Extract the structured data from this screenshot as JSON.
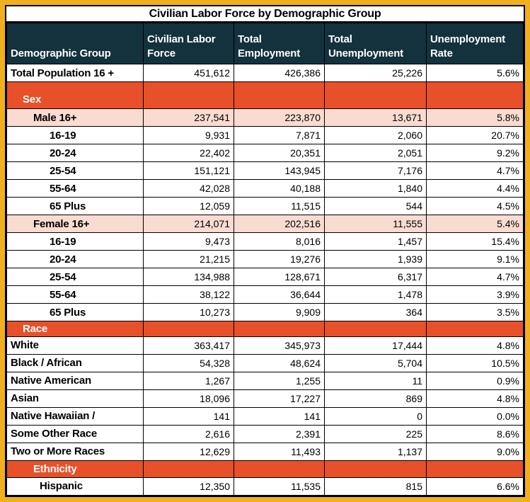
{
  "title": "Civilian Labor Force by Demographic Group",
  "columns": [
    {
      "label": "Demographic Group"
    },
    {
      "label": "Civilian Labor Force"
    },
    {
      "label": "Total Employment"
    },
    {
      "label": "Total Unemployment"
    },
    {
      "label": "Unemployment Rate"
    }
  ],
  "rows": [
    {
      "type": "data",
      "indent": 0,
      "label": "Total Population 16 +",
      "values": [
        "451,612",
        "426,386",
        "25,226",
        "5.6%"
      ]
    },
    {
      "type": "section",
      "size": "tall",
      "indent": 1,
      "label": "Sex",
      "values": [
        "",
        "",
        "",
        ""
      ]
    },
    {
      "type": "data",
      "highlight": true,
      "indent": 2,
      "label": "Male 16+",
      "values": [
        "237,541",
        "223,870",
        "13,671",
        "5.8%"
      ]
    },
    {
      "type": "data",
      "indent": 3,
      "label": "16-19",
      "values": [
        "9,931",
        "7,871",
        "2,060",
        "20.7%"
      ]
    },
    {
      "type": "data",
      "indent": 3,
      "label": "20-24",
      "values": [
        "22,402",
        "20,351",
        "2,051",
        "9.2%"
      ]
    },
    {
      "type": "data",
      "indent": 3,
      "label": "25-54",
      "values": [
        "151,121",
        "143,945",
        "7,176",
        "4.7%"
      ]
    },
    {
      "type": "data",
      "indent": 3,
      "label": "55-64",
      "values": [
        "42,028",
        "40,188",
        "1,840",
        "4.4%"
      ]
    },
    {
      "type": "data",
      "indent": 3,
      "label": "65 Plus",
      "values": [
        "12,059",
        "11,515",
        "544",
        "4.5%"
      ]
    },
    {
      "type": "data",
      "highlight": true,
      "indent": 2,
      "label": "Female 16+",
      "values": [
        "214,071",
        "202,516",
        "11,555",
        "5.4%"
      ]
    },
    {
      "type": "data",
      "indent": 3,
      "label": "16-19",
      "values": [
        "9,473",
        "8,016",
        "1,457",
        "15.4%"
      ]
    },
    {
      "type": "data",
      "indent": 3,
      "label": "20-24",
      "values": [
        "21,215",
        "19,276",
        "1,939",
        "9.1%"
      ]
    },
    {
      "type": "data",
      "indent": 3,
      "label": "25-54",
      "values": [
        "134,988",
        "128,671",
        "6,317",
        "4.7%"
      ]
    },
    {
      "type": "data",
      "indent": 3,
      "label": "55-64",
      "values": [
        "38,122",
        "36,644",
        "1,478",
        "3.9%"
      ]
    },
    {
      "type": "data",
      "indent": 3,
      "label": "65 Plus",
      "values": [
        "10,273",
        "9,909",
        "364",
        "3.5%"
      ]
    },
    {
      "type": "section",
      "size": "short",
      "indent": 1,
      "label": "Race",
      "values": [
        "",
        "",
        "",
        ""
      ]
    },
    {
      "type": "data",
      "indent": 0,
      "label": "White",
      "values": [
        "363,417",
        "345,973",
        "17,444",
        "4.8%"
      ]
    },
    {
      "type": "data",
      "indent": 0,
      "label": "Black / African",
      "values": [
        "54,328",
        "48,624",
        "5,704",
        "10.5%"
      ]
    },
    {
      "type": "data",
      "indent": 0,
      "label": "Native American",
      "values": [
        "1,267",
        "1,255",
        "11",
        "0.9%"
      ]
    },
    {
      "type": "data",
      "indent": 0,
      "label": "Asian",
      "values": [
        "18,096",
        "17,227",
        "869",
        "4.8%"
      ]
    },
    {
      "type": "data",
      "indent": 0,
      "label": "Native Hawaiian /",
      "values": [
        "141",
        "141",
        "0",
        "0.0%"
      ]
    },
    {
      "type": "data",
      "indent": 0,
      "label": "Some Other Race",
      "values": [
        "2,616",
        "2,391",
        "225",
        "8.6%"
      ]
    },
    {
      "type": "data",
      "indent": 0,
      "label": "Two or More Races",
      "values": [
        "12,629",
        "11,493",
        "1,137",
        "9.0%"
      ]
    },
    {
      "type": "section",
      "size": "normal",
      "indent": 2,
      "label": "Ethnicity",
      "values": [
        "",
        "",
        "",
        ""
      ]
    },
    {
      "type": "data",
      "indent": 4,
      "label": "Hispanic",
      "values": [
        "12,350",
        "11,535",
        "815",
        "6.6%"
      ]
    }
  ],
  "colors": {
    "frame_color": "#F0B01E",
    "header_bg": "#14313E",
    "header_text": "#FFFFFF",
    "section_bg": "#E8502A",
    "section_text": "#FFFFFF",
    "highlight_bg": "#F9DBD1",
    "grid_color": "#000000"
  }
}
